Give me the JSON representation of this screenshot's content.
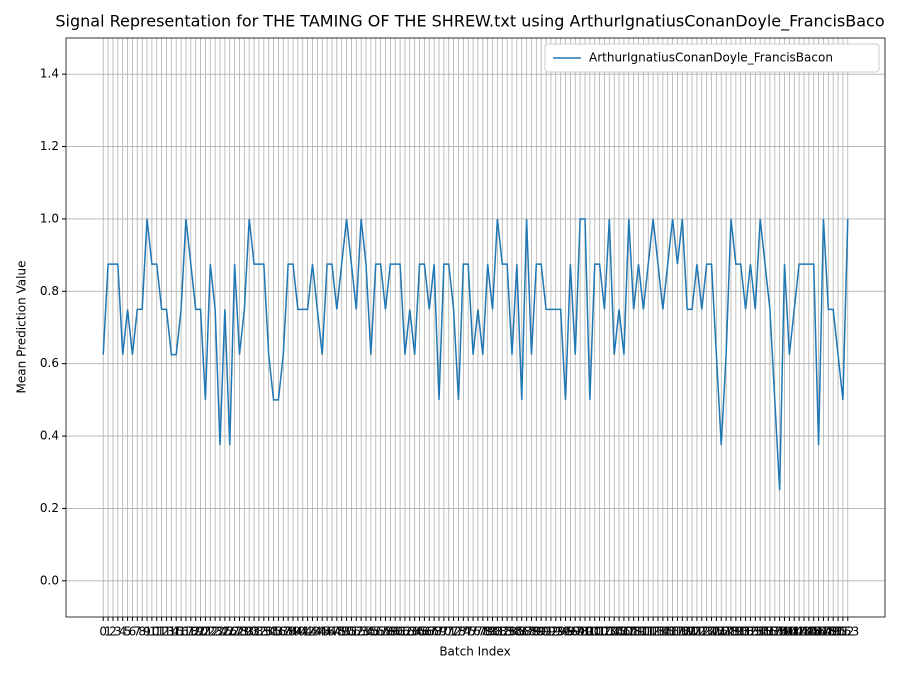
{
  "chart_data": {
    "type": "line",
    "title": "Signal Representation for THE TAMING OF THE SHREW.txt using ArthurIgnatiusConanDoyle_FrancisBaco",
    "x_label": "Batch Index",
    "y_label": "Mean Prediction Value",
    "x": [
      0,
      1,
      2,
      3,
      4,
      5,
      6,
      7,
      8,
      9,
      10,
      11,
      12,
      13,
      14,
      15,
      16,
      17,
      18,
      19,
      20,
      21,
      22,
      23,
      24,
      25,
      26,
      27,
      28,
      29,
      30,
      31,
      32,
      33,
      34,
      35,
      36,
      37,
      38,
      39,
      40,
      41,
      42,
      43,
      44,
      45,
      46,
      47,
      48,
      49,
      50,
      51,
      52,
      53,
      54,
      55,
      56,
      57,
      58,
      59,
      60,
      61,
      62,
      63,
      64,
      65,
      66,
      67,
      68,
      69,
      70,
      71,
      72,
      73,
      74,
      75,
      76,
      77,
      78,
      79,
      80,
      81,
      82,
      83,
      84,
      85,
      86,
      87,
      88,
      89,
      90,
      91,
      92,
      93,
      94,
      95,
      96,
      97,
      98,
      99,
      100,
      101,
      102,
      103,
      104,
      105,
      106,
      107,
      108,
      109,
      110,
      111,
      112,
      113,
      114,
      115,
      116,
      117,
      118,
      119,
      120,
      121,
      122,
      123,
      124,
      125,
      126,
      127,
      128,
      129,
      130,
      131,
      132,
      133,
      134,
      135,
      136,
      137,
      138,
      139,
      140,
      141,
      142,
      143,
      144,
      145,
      146,
      147,
      148,
      149,
      150,
      151,
      152,
      153
    ],
    "series": [
      {
        "name": "ArthurIgnatiusConanDoyle_FrancisBacon",
        "color": "#1f77b4",
        "values": [
          0.625,
          0.875,
          0.875,
          0.875,
          0.625,
          0.75,
          0.625,
          0.75,
          0.75,
          1.0,
          0.875,
          0.875,
          0.75,
          0.75,
          0.625,
          0.625,
          0.75,
          1.0,
          0.875,
          0.75,
          0.75,
          0.5,
          0.875,
          0.75,
          0.375,
          0.75,
          0.375,
          0.875,
          0.625,
          0.75,
          1.0,
          0.875,
          0.875,
          0.875,
          0.625,
          0.5,
          0.5,
          0.625,
          0.875,
          0.875,
          0.75,
          0.75,
          0.75,
          0.875,
          0.75,
          0.625,
          0.875,
          0.875,
          0.75,
          0.875,
          1.0,
          0.875,
          0.75,
          1.0,
          0.875,
          0.625,
          0.875,
          0.875,
          0.75,
          0.875,
          0.875,
          0.875,
          0.625,
          0.75,
          0.625,
          0.875,
          0.875,
          0.75,
          0.875,
          0.5,
          0.875,
          0.875,
          0.75,
          0.5,
          0.875,
          0.875,
          0.625,
          0.75,
          0.625,
          0.875,
          0.75,
          1.0,
          0.875,
          0.875,
          0.625,
          0.875,
          0.5,
          1.0,
          0.625,
          0.875,
          0.875,
          0.75,
          0.75,
          0.75,
          0.75,
          0.5,
          0.875,
          0.625,
          1.0,
          1.0,
          0.5,
          0.875,
          0.875,
          0.75,
          1.0,
          0.625,
          0.75,
          0.625,
          1.0,
          0.75,
          0.875,
          0.75,
          0.875,
          1.0,
          0.875,
          0.75,
          0.875,
          1.0,
          0.875,
          1.0,
          0.75,
          0.75,
          0.875,
          0.75,
          0.875,
          0.875,
          0.625,
          0.375,
          0.625,
          1.0,
          0.875,
          0.875,
          0.75,
          0.875,
          0.75,
          1.0,
          0.875,
          0.75,
          0.5,
          0.25,
          0.875,
          0.625,
          0.75,
          0.875,
          0.875,
          0.875,
          0.875,
          0.375,
          1.0,
          0.75,
          0.75,
          0.625,
          0.5,
          1.0
        ]
      }
    ],
    "xlim": [
      -7.65,
      160.65
    ],
    "ylim": [
      -0.1,
      1.5
    ],
    "yticks": [
      {
        "value": 0,
        "label": "0.0"
      },
      {
        "value": 0.2,
        "label": "0.2"
      },
      {
        "value": 0.4,
        "label": "0.4"
      },
      {
        "value": 0.6,
        "label": "0.6"
      },
      {
        "value": 0.8,
        "label": "0.8"
      },
      {
        "value": 1,
        "label": "1.0"
      },
      {
        "value": 1.2,
        "label": "1.2"
      },
      {
        "value": 1.4,
        "label": "1.4"
      }
    ],
    "grid": true,
    "legend": "upper right"
  }
}
